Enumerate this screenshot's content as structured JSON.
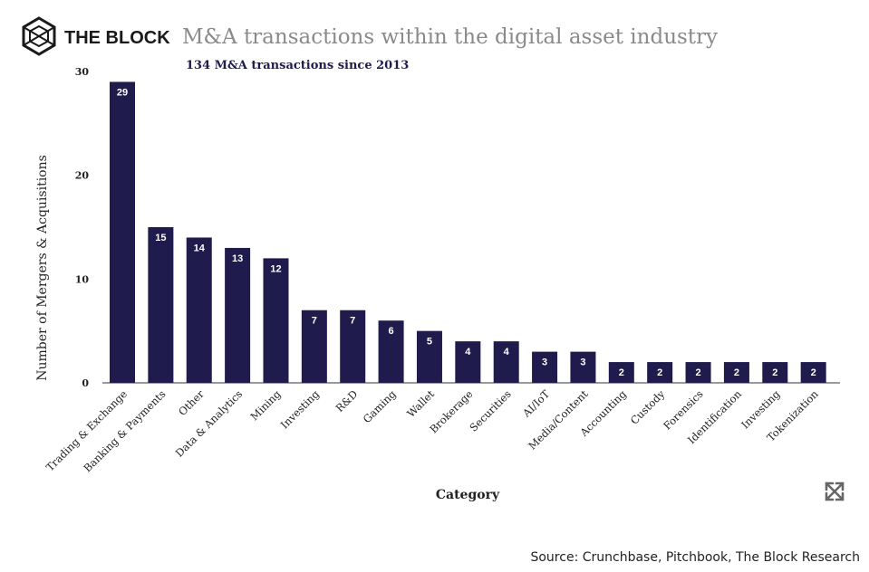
{
  "brand": {
    "name": "THE BLOCK",
    "logo_icon": "cube-logo-icon"
  },
  "expand_icon": "expand-arrows-icon",
  "source": "Source: Crunchbase, Pitchbook, The Block Research",
  "colors": {
    "bar": "#1f1b4d",
    "title": "#8a8a8a",
    "subtitle": "#1f1b4d",
    "axis": "#333333"
  },
  "chart_data": {
    "type": "bar",
    "title": "M&A transactions within the digital asset industry",
    "subtitle": "134 M&A transactions since 2013",
    "xlabel": "Category",
    "ylabel": "Number of Mergers & Acquisitions",
    "ylim": [
      0,
      30
    ],
    "yticks": [
      0,
      10,
      20,
      30
    ],
    "grid": false,
    "categories": [
      "Trading & Exchange",
      "Banking & Payments",
      "Other",
      "Data & Analytics",
      "Mining",
      "Investing",
      "R&D",
      "Gaming",
      "Wallet",
      "Brokerage",
      "Securities",
      "AI/IoT",
      "Media/Content",
      "Accounting",
      "Custody",
      "Forensics",
      "Identification",
      "Investing",
      "Tokenization"
    ],
    "values": [
      29,
      15,
      14,
      13,
      12,
      7,
      7,
      6,
      5,
      4,
      4,
      3,
      3,
      2,
      2,
      2,
      2,
      2,
      2
    ]
  }
}
